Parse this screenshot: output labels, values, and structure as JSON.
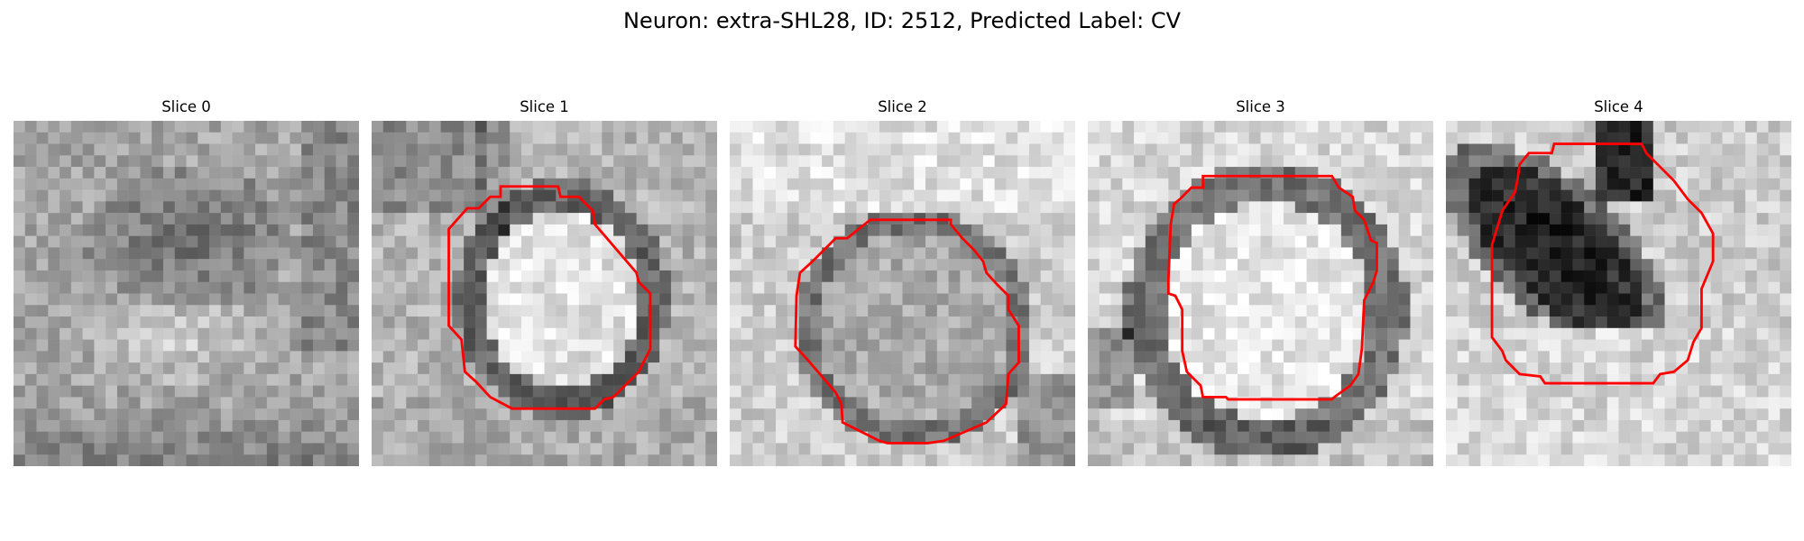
{
  "title": "Neuron: extra-SHL28, ID: 2512, Predicted Label: CV",
  "colors": {
    "contour": "#ff0000",
    "background": "#ffffff",
    "text": "#000000"
  },
  "panels": [
    {
      "title": "Slice 0",
      "colormap": "grayscale",
      "has_contour": false
    },
    {
      "title": "Slice 1",
      "colormap": "grayscale",
      "has_contour": true
    },
    {
      "title": "Slice 2",
      "colormap": "grayscale",
      "has_contour": true
    },
    {
      "title": "Slice 3",
      "colormap": "grayscale",
      "has_contour": true
    },
    {
      "title": "Slice 4",
      "colormap": "grayscale",
      "has_contour": true
    }
  ]
}
